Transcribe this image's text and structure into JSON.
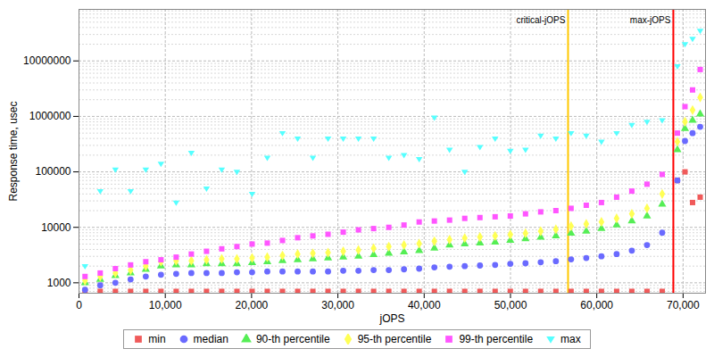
{
  "chart_data": {
    "type": "scatter",
    "x_label": "jOPS",
    "y_label": "Response time, usec",
    "log": "y",
    "grid": true,
    "legend": "bottom",
    "xlim": [
      0,
      72600
    ],
    "ylim": [
      650,
      85000000
    ],
    "xticks": [
      0,
      {
        "value": 10000,
        "label": "10,000"
      },
      {
        "value": 20000,
        "label": "20,000"
      },
      {
        "value": 30000,
        "label": "30,000"
      },
      {
        "value": 40000,
        "label": "40,000"
      },
      {
        "value": 50000,
        "label": "50,000"
      },
      {
        "value": 60000,
        "label": "60,000"
      },
      {
        "value": 70000,
        "label": "70,000"
      }
    ],
    "yticks": [
      1000,
      10000,
      100000,
      1000000,
      10000000
    ],
    "annotations": [
      {
        "text": "critical-jOPS",
        "x": 56670,
        "color": "#ffc800"
      },
      {
        "text": "max-jOPS",
        "x": 68870,
        "color": "#ff0000"
      }
    ],
    "x": [
      700,
      2460,
      4220,
      5980,
      7740,
      9500,
      11260,
      13020,
      14780,
      16540,
      18300,
      20060,
      21820,
      23580,
      25340,
      27100,
      28860,
      30620,
      32380,
      34140,
      35900,
      37660,
      39420,
      41180,
      42940,
      44700,
      46460,
      48220,
      49980,
      51740,
      53500,
      55260,
      57020,
      58780,
      60540,
      62300,
      64060,
      65820,
      67580,
      69340,
      70220,
      71100,
      71980
    ],
    "series": [
      {
        "name": "min",
        "color": "#f05a5a",
        "marker": "square",
        "values": [
          700,
          700,
          700,
          700,
          700,
          700,
          700,
          700,
          700,
          700,
          700,
          700,
          700,
          700,
          700,
          700,
          700,
          700,
          700,
          700,
          700,
          700,
          700,
          700,
          700,
          700,
          700,
          700,
          700,
          700,
          700,
          700,
          700,
          700,
          700,
          700,
          700,
          700,
          700,
          70000,
          100000,
          28000,
          35000
        ]
      },
      {
        "name": "median",
        "color": "#6a6aff",
        "marker": "circle",
        "values": [
          750,
          900,
          1000,
          1150,
          1300,
          1400,
          1450,
          1500,
          1500,
          1500,
          1550,
          1550,
          1600,
          1600,
          1600,
          1600,
          1600,
          1650,
          1650,
          1700,
          1700,
          1750,
          1800,
          1900,
          1950,
          2000,
          2050,
          2100,
          2200,
          2250,
          2350,
          2450,
          2650,
          2800,
          3000,
          3300,
          3800,
          4800,
          8000,
          70000,
          360000,
          500000,
          650000
        ]
      },
      {
        "name": "90-th percentile",
        "color": "#55ee55",
        "marker": "triangle",
        "values": [
          1000,
          1150,
          1350,
          1500,
          1750,
          2000,
          2100,
          2100,
          2200,
          2200,
          2200,
          2300,
          2400,
          2500,
          2600,
          2700,
          2800,
          2900,
          3000,
          3200,
          3400,
          3600,
          3800,
          4200,
          4800,
          5000,
          5200,
          5400,
          5800,
          6200,
          6600,
          7000,
          7800,
          8500,
          9500,
          11000,
          13000,
          16000,
          26000,
          250000,
          600000,
          850000,
          1100000
        ]
      },
      {
        "name": "95-th percentile",
        "color": "#ffff55",
        "marker": "diamond",
        "values": [
          1100,
          1300,
          1500,
          1700,
          2000,
          2400,
          2500,
          2500,
          2600,
          2700,
          2700,
          2800,
          2900,
          3100,
          3300,
          3400,
          3500,
          3700,
          3900,
          4200,
          4500,
          4800,
          5100,
          5600,
          6000,
          6400,
          6700,
          7000,
          7400,
          7800,
          8500,
          9200,
          10500,
          11500,
          12500,
          14500,
          17500,
          22000,
          40000,
          350000,
          800000,
          1300000,
          2200000
        ]
      },
      {
        "name": "99-th percentile",
        "color": "#ff55ff",
        "marker": "square",
        "values": [
          1300,
          1500,
          1800,
          2100,
          2400,
          2600,
          2900,
          3300,
          3700,
          4100,
          4500,
          5000,
          5200,
          5800,
          6500,
          7000,
          7500,
          8200,
          9000,
          9500,
          10000,
          11000,
          12500,
          13000,
          13500,
          14500,
          15000,
          15500,
          16000,
          17500,
          19000,
          20000,
          22000,
          25000,
          28000,
          35000,
          45000,
          60000,
          90000,
          500000,
          1500000,
          3000000,
          7000000
        ]
      },
      {
        "name": "max",
        "color": "#55ffff",
        "marker": "triangle-down",
        "values": [
          2000,
          45000,
          110000,
          45000,
          110000,
          140000,
          28000,
          220000,
          50000,
          110000,
          100000,
          40000,
          180000,
          500000,
          400000,
          180000,
          400000,
          400000,
          400000,
          400000,
          180000,
          200000,
          170000,
          950000,
          250000,
          100000,
          280000,
          400000,
          240000,
          250000,
          450000,
          400000,
          500000,
          450000,
          350000,
          500000,
          700000,
          800000,
          850000,
          8000000,
          20000000,
          25000000,
          35000000
        ]
      }
    ]
  }
}
